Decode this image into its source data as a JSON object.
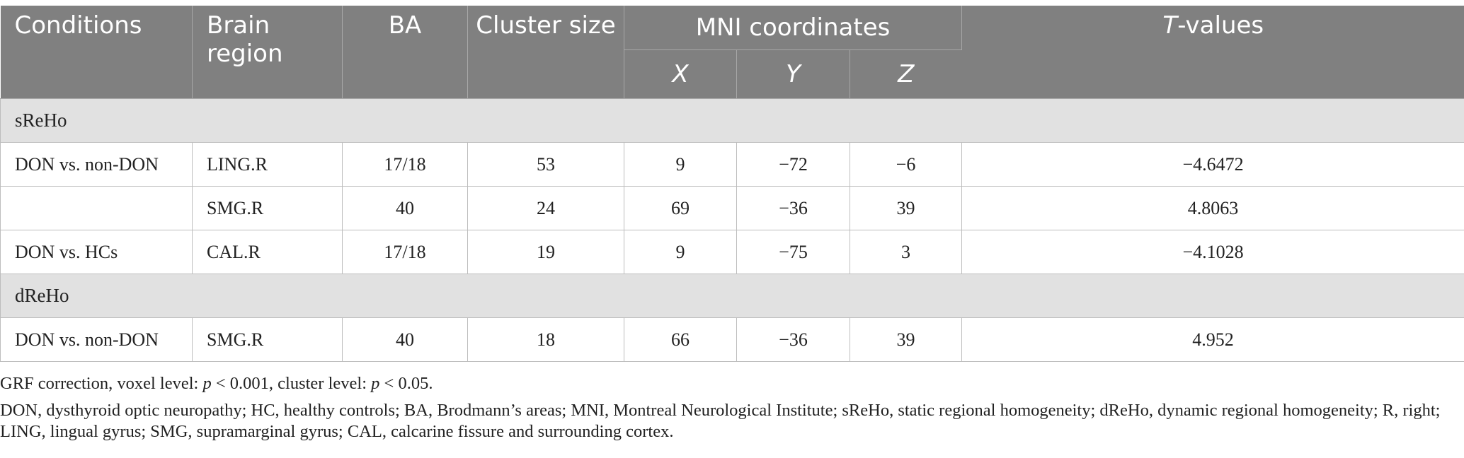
{
  "header": {
    "conditions": "Conditions",
    "brain_region": "Brain region",
    "ba": "BA",
    "cluster_size": "Cluster size",
    "mni": "MNI coordinates",
    "x": "X",
    "y": "Y",
    "z": "Z",
    "t_italic": "T",
    "t_rest": "-values"
  },
  "sections": [
    {
      "label": "sReHo",
      "rows": [
        {
          "condition": "DON vs. non-DON",
          "region": "LING.R",
          "ba": "17/18",
          "cluster": "53",
          "x": "9",
          "y": "−72",
          "z": "−6",
          "t": "−4.6472"
        },
        {
          "condition": "",
          "region": "SMG.R",
          "ba": "40",
          "cluster": "24",
          "x": "69",
          "y": "−36",
          "z": "39",
          "t": "4.8063"
        },
        {
          "condition": "DON vs. HCs",
          "region": "CAL.R",
          "ba": "17/18",
          "cluster": "19",
          "x": "9",
          "y": "−75",
          "z": "3",
          "t": "−4.1028"
        }
      ]
    },
    {
      "label": "dReHo",
      "rows": [
        {
          "condition": "DON vs. non-DON",
          "region": "SMG.R",
          "ba": "40",
          "cluster": "18",
          "x": "66",
          "y": "−36",
          "z": "39",
          "t": "4.952"
        }
      ]
    }
  ],
  "notes": {
    "n1_a": "GRF correction, voxel level: ",
    "n1_p1": "p",
    "n1_b": " < 0.001, cluster level: ",
    "n1_p2": "p",
    "n1_c": " < 0.05.",
    "n2": "DON, dysthyroid optic neuropathy; HC, healthy controls; BA, Brodmann’s areas; MNI, Montreal Neurological Institute; sReHo, static regional homogeneity; dReHo, dynamic regional homogeneity; R, right; LING, lingual gyrus; SMG, supramarginal gyrus; CAL, calcarine fissure and surrounding cortex."
  }
}
